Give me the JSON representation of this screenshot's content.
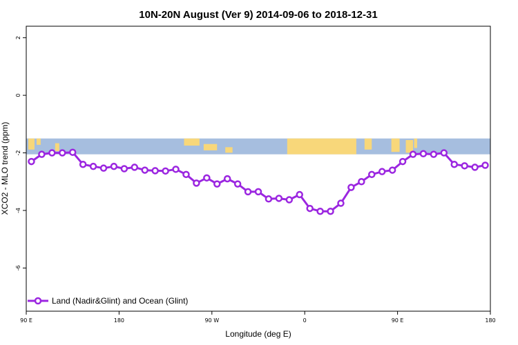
{
  "chart_data": {
    "type": "line",
    "title": "10N-20N August (Ver 9)   2014-09-06 to 2018-12-31",
    "xlabel": "Longitude (deg E)",
    "ylabel": "XCO2 - MLO trend (ppm)",
    "x_ticks": [
      {
        "value": 90,
        "label": "90 E"
      },
      {
        "value": 180,
        "label": "180"
      },
      {
        "value": 270,
        "label": "90 W"
      },
      {
        "value": 360,
        "label": "0"
      },
      {
        "value": 450,
        "label": "90 E"
      },
      {
        "value": 540,
        "label": "180"
      }
    ],
    "y_ticks": [
      {
        "value": 2,
        "label": "2"
      },
      {
        "value": 0,
        "label": "0"
      },
      {
        "value": -2,
        "label": "-2"
      },
      {
        "value": -4,
        "label": "-4"
      },
      {
        "value": -6,
        "label": "-6"
      }
    ],
    "xlim": [
      90,
      540
    ],
    "ylim": [
      -7.5,
      2.4
    ],
    "grid": false,
    "legend_position": "bottom-left",
    "map_strip": {
      "lat_range": "10N-20N",
      "y_range": [
        -2.05,
        -1.5
      ],
      "ocean_color": "#a6bedf",
      "land_color": "#f8d77a"
    },
    "series": [
      {
        "name": "Land (Nadir&Glint) and Ocean (Glint)",
        "color": "#9b26e0",
        "x": [
          95,
          105,
          115,
          125,
          135,
          145,
          155,
          165,
          175,
          185,
          195,
          205,
          215,
          225,
          235,
          245,
          255,
          265,
          275,
          285,
          295,
          305,
          315,
          325,
          335,
          345,
          355,
          365,
          375,
          385,
          395,
          405,
          415,
          425,
          435,
          445,
          455,
          465,
          475,
          485,
          495,
          505,
          515,
          525,
          535
        ],
        "values": [
          -2.3,
          -2.05,
          -2.0,
          -2.0,
          -1.98,
          -2.4,
          -2.47,
          -2.53,
          -2.47,
          -2.55,
          -2.5,
          -2.6,
          -2.62,
          -2.63,
          -2.57,
          -2.75,
          -3.05,
          -2.87,
          -3.08,
          -2.9,
          -3.08,
          -3.35,
          -3.35,
          -3.6,
          -3.58,
          -3.63,
          -3.45,
          -3.93,
          -4.03,
          -4.03,
          -3.75,
          -3.2,
          -3.0,
          -2.75,
          -2.65,
          -2.6,
          -2.3,
          -2.05,
          -2.03,
          -2.05,
          -2.0,
          -2.4,
          -2.45,
          -2.5,
          -2.43
        ]
      }
    ]
  }
}
